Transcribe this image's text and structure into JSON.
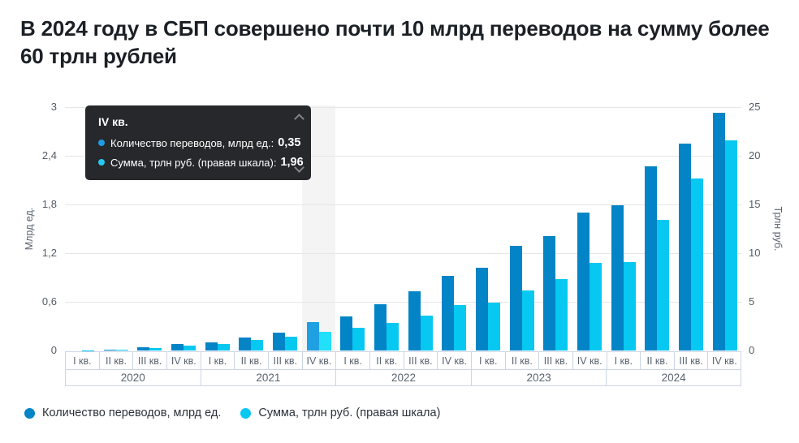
{
  "title": "В 2024 году в СБП совершено почти 10 млрд переводов на сумму более 60 трлн рублей",
  "colors": {
    "count_bar": "#0284c6",
    "sum_bar": "#06c8f0",
    "count_bar_highlight": "#1ea0e2",
    "sum_bar_highlight": "#22dffa",
    "highlight_band": "#f4f4f4",
    "gridline": "#e6e6e6",
    "tooltip_bg": "#26282b",
    "tooltip_dot_count": "#1e9ce4",
    "tooltip_dot_sum": "#26c9f2"
  },
  "chart_data": {
    "type": "bar",
    "title": "В 2024 году в СБП совершено почти 10 млрд переводов на сумму более 60 трлн рублей",
    "years": [
      "2020",
      "2021",
      "2022",
      "2023",
      "2024"
    ],
    "quarters": [
      "I кв.",
      "II кв.",
      "III кв.",
      "IV кв."
    ],
    "series": [
      {
        "name": "Количество переводов, млрд ед.",
        "axis": "left",
        "values": [
          0.0,
          0.01,
          0.04,
          0.08,
          0.1,
          0.16,
          0.22,
          0.35,
          0.42,
          0.57,
          0.73,
          0.92,
          1.02,
          1.29,
          1.41,
          1.7,
          1.79,
          2.27,
          2.55,
          2.93
        ]
      },
      {
        "name": "Сумма, трлн руб. (правая шкала)",
        "axis": "right",
        "values": [
          0.03,
          0.1,
          0.25,
          0.5,
          0.64,
          1.08,
          1.4,
          1.96,
          2.3,
          2.85,
          3.6,
          4.7,
          4.9,
          6.2,
          7.3,
          9.0,
          9.1,
          13.4,
          17.7,
          21.6
        ]
      }
    ],
    "left_axis": {
      "label": "Млрд ед.",
      "max": 3,
      "ticks": [
        {
          "v": 3,
          "label": "3"
        },
        {
          "v": 2.4,
          "label": "2,4"
        },
        {
          "v": 1.8,
          "label": "1,8"
        },
        {
          "v": 1.2,
          "label": "1,2"
        },
        {
          "v": 0.6,
          "label": "0,6"
        },
        {
          "v": 0,
          "label": "0"
        }
      ]
    },
    "right_axis": {
      "label": "Трлн руб.",
      "max": 25,
      "ticks": [
        {
          "v": 25,
          "label": "25"
        },
        {
          "v": 20,
          "label": "20"
        },
        {
          "v": 15,
          "label": "15"
        },
        {
          "v": 10,
          "label": "10"
        },
        {
          "v": 5,
          "label": "5"
        },
        {
          "v": 0,
          "label": "0"
        }
      ]
    },
    "highlight": {
      "index": 7,
      "year": "2021",
      "quarter": "IV кв."
    },
    "grid": true,
    "legend_position": "bottom"
  },
  "tooltip": {
    "title": "IV кв.",
    "rows": [
      {
        "label": "Количество переводов, млрд ед.:",
        "value": "0,35"
      },
      {
        "label": "Сумма, трлн руб. (правая шкала):",
        "value": "1,96"
      }
    ]
  },
  "legend": {
    "items": [
      {
        "label": "Количество переводов, млрд ед."
      },
      {
        "label": "Сумма, трлн руб. (правая шкала)"
      }
    ]
  }
}
